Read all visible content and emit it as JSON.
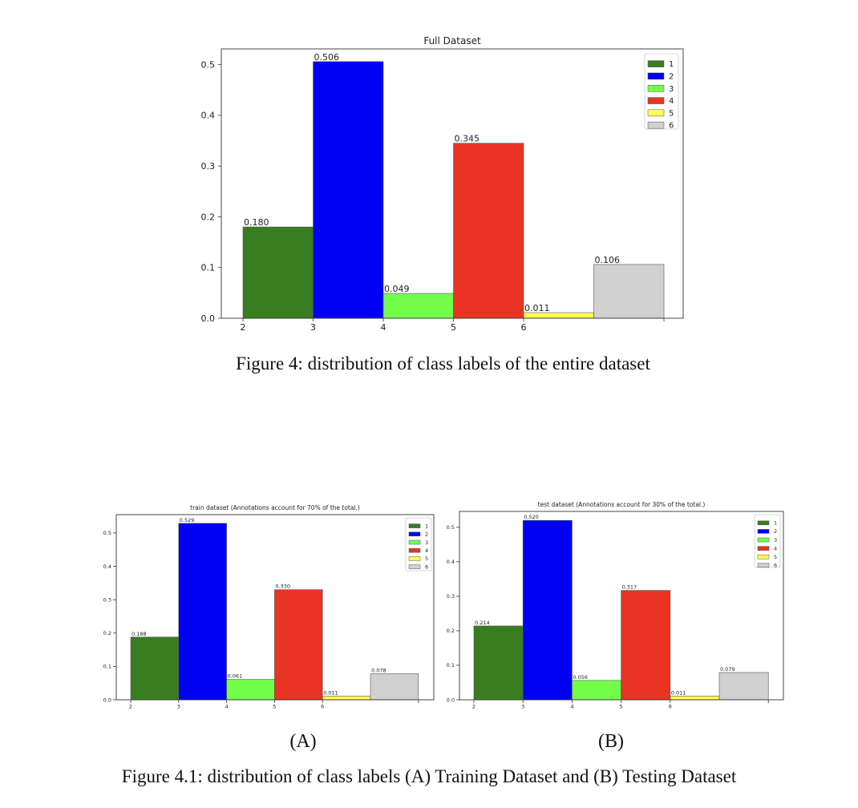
{
  "figure_main": {
    "caption": "Figure 4: distribution of class labels of the entire dataset"
  },
  "figure_sub": {
    "caption": "Figure 4.1: distribution of class labels (A) Training Dataset and (B) Testing Dataset",
    "label_a": "(A)",
    "label_b": "(B)"
  },
  "chart_data": [
    {
      "type": "bar",
      "title": "Full Dataset",
      "xlabel": "",
      "ylabel": "",
      "categories": [
        "1",
        "2",
        "3",
        "4",
        "5",
        "6"
      ],
      "values": [
        0.18,
        0.506,
        0.049,
        0.345,
        0.011,
        0.106
      ],
      "data_labels": [
        "0.180",
        "0.506",
        "0.049",
        "0.345",
        "0.011",
        "0.106"
      ],
      "colors": [
        "#387d20",
        "#0000f5",
        "#72fd4a",
        "#e93423",
        "#fffe54",
        "#d0d0d0"
      ],
      "x_ticks": [
        "2",
        "3",
        "4",
        "5",
        "6"
      ],
      "y_ticks": [
        {
          "value": 0.0,
          "label": "0.0"
        },
        {
          "value": 0.1,
          "label": "0.1"
        },
        {
          "value": 0.2,
          "label": "0.2"
        },
        {
          "value": 0.3,
          "label": "0.3"
        },
        {
          "value": 0.4,
          "label": "0.4"
        },
        {
          "value": 0.5,
          "label": "0.5"
        }
      ],
      "ylim": [
        0,
        0.531
      ],
      "legend": "top-right",
      "grid": false
    },
    {
      "type": "bar",
      "title": "train dataset (Annotations account for 70% of the total.)",
      "xlabel": "",
      "ylabel": "",
      "categories": [
        "1",
        "2",
        "3",
        "4",
        "5",
        "6"
      ],
      "values": [
        0.188,
        0.529,
        0.061,
        0.33,
        0.011,
        0.078
      ],
      "data_labels": [
        "0.188",
        "0.529",
        "0.061",
        "0.330",
        "0.011",
        "0.078"
      ],
      "colors": [
        "#387d20",
        "#0000f5",
        "#72fd4a",
        "#e93423",
        "#fffe54",
        "#d0d0d0"
      ],
      "x_ticks": [
        "2",
        "3",
        "4",
        "5",
        "6"
      ],
      "y_ticks": [
        {
          "value": 0.0,
          "label": "0.0"
        },
        {
          "value": 0.1,
          "label": "0.1"
        },
        {
          "value": 0.2,
          "label": "0.2"
        },
        {
          "value": 0.3,
          "label": "0.3"
        },
        {
          "value": 0.4,
          "label": "0.4"
        },
        {
          "value": 0.5,
          "label": "0.5"
        }
      ],
      "ylim": [
        0,
        0.555
      ],
      "legend": "top-right",
      "grid": false
    },
    {
      "type": "bar",
      "title": "test dataset (Annotations account for 30% of the total.)",
      "xlabel": "",
      "ylabel": "",
      "categories": [
        "1",
        "2",
        "3",
        "4",
        "5",
        "6"
      ],
      "values": [
        0.214,
        0.52,
        0.056,
        0.317,
        0.011,
        0.079
      ],
      "data_labels": [
        "0.214",
        "0.520",
        "0.056",
        "0.317",
        "0.011",
        "0.079"
      ],
      "colors": [
        "#387d20",
        "#0000f5",
        "#72fd4a",
        "#e93423",
        "#fffe54",
        "#d0d0d0"
      ],
      "x_ticks": [
        "2",
        "3",
        "4",
        "5",
        "6"
      ],
      "y_ticks": [
        {
          "value": 0.0,
          "label": "0.0"
        },
        {
          "value": 0.1,
          "label": "0.1"
        },
        {
          "value": 0.2,
          "label": "0.2"
        },
        {
          "value": 0.3,
          "label": "0.3"
        },
        {
          "value": 0.4,
          "label": "0.4"
        },
        {
          "value": 0.5,
          "label": "0.5"
        }
      ],
      "ylim": [
        0,
        0.546
      ],
      "legend": "top-right",
      "grid": false
    }
  ]
}
